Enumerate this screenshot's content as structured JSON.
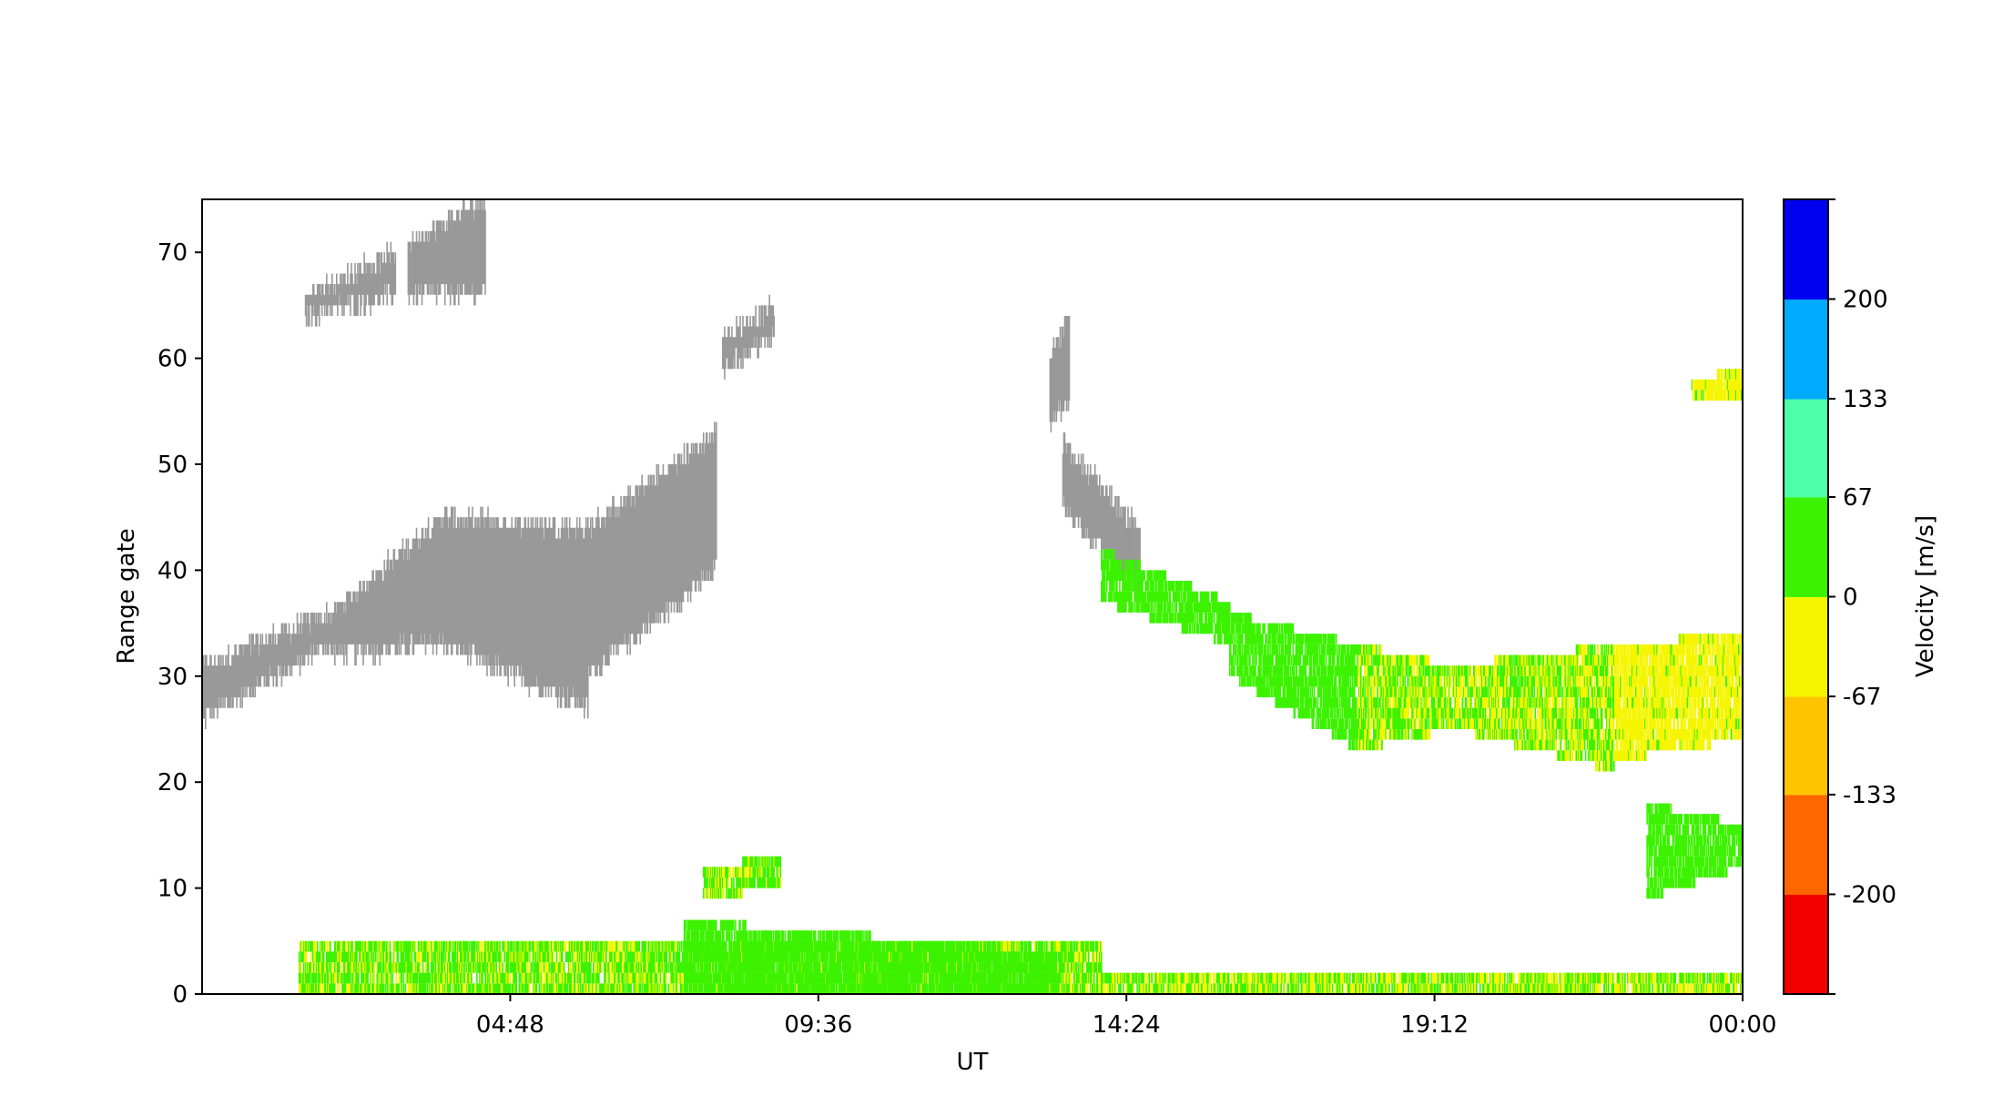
{
  "chart_data": {
    "type": "heatmap",
    "title": "",
    "xlabel": "UT",
    "ylabel": "Range gate",
    "x_range_hours": [
      0,
      24
    ],
    "x_ticks": [
      {
        "value": 4.8,
        "label": "04:48"
      },
      {
        "value": 9.6,
        "label": "09:36"
      },
      {
        "value": 14.4,
        "label": "14:24"
      },
      {
        "value": 19.2,
        "label": "19:12"
      },
      {
        "value": 24.0,
        "label": "00:00"
      }
    ],
    "ylim": [
      0,
      75
    ],
    "y_ticks": [
      {
        "value": 0,
        "label": "0"
      },
      {
        "value": 10,
        "label": "10"
      },
      {
        "value": 20,
        "label": "20"
      },
      {
        "value": 30,
        "label": "30"
      },
      {
        "value": 40,
        "label": "40"
      },
      {
        "value": 50,
        "label": "50"
      },
      {
        "value": 60,
        "label": "60"
      },
      {
        "value": 70,
        "label": "70"
      }
    ],
    "grid": false,
    "colorbar": {
      "label": "Velocity [m/s]",
      "range": [
        -267,
        267
      ],
      "boundaries": [
        -267,
        -200,
        -133,
        -67,
        0,
        67,
        133,
        200,
        267
      ],
      "colors": [
        "#f20000",
        "#ff6600",
        "#ffc400",
        "#f5f500",
        "#3df200",
        "#4dffa6",
        "#00aaff",
        "#0000f0"
      ],
      "ticks": [
        {
          "value": 200,
          "label": "200"
        },
        {
          "value": 133,
          "label": "133"
        },
        {
          "value": 67,
          "label": "67"
        },
        {
          "value": 0,
          "label": "0"
        },
        {
          "value": -67,
          "label": "-67"
        },
        {
          "value": -133,
          "label": "-133"
        },
        {
          "value": -200,
          "label": "-200"
        }
      ]
    },
    "ground_scatter_color": "#999999",
    "ground_scatter_regions": [
      {
        "x": [
          0.0,
          2.0
        ],
        "y_low": [
          26,
          33
        ],
        "y_high": [
          31,
          36
        ]
      },
      {
        "x": [
          2.0,
          3.7
        ],
        "y_low": [
          32,
          33
        ],
        "y_high": [
          36,
          45
        ]
      },
      {
        "x": [
          3.7,
          6.0
        ],
        "y_low": [
          33,
          27
        ],
        "y_high": [
          45,
          44
        ]
      },
      {
        "x": [
          6.0,
          8.0
        ],
        "y_low": [
          30,
          40
        ],
        "y_high": [
          44,
          53
        ]
      },
      {
        "x": [
          1.6,
          3.0
        ],
        "y_low": [
          64,
          66
        ],
        "y_high": [
          66,
          70
        ]
      },
      {
        "x": [
          3.2,
          4.4
        ],
        "y_low": [
          66,
          66
        ],
        "y_high": [
          71,
          75
        ]
      },
      {
        "x": [
          8.1,
          8.9
        ],
        "y_low": [
          59,
          62
        ],
        "y_high": [
          62,
          65
        ]
      },
      {
        "x": [
          13.4,
          14.6
        ],
        "y_low": [
          46,
          38
        ],
        "y_high": [
          52,
          44
        ]
      },
      {
        "x": [
          13.2,
          13.5
        ],
        "y_low": [
          54,
          56
        ],
        "y_high": [
          60,
          64
        ]
      }
    ],
    "scatter_bands": [
      {
        "x": [
          14.0,
          16.0
        ],
        "y_low": [
          37,
          33
        ],
        "y_high": [
          42,
          37
        ],
        "v": [
          5,
          45
        ]
      },
      {
        "x": [
          16.0,
          18.0
        ],
        "y_low": [
          30,
          23
        ],
        "y_high": [
          36,
          33
        ],
        "v": [
          15,
          55
        ]
      },
      {
        "x": [
          18.0,
          19.5
        ],
        "y_low": [
          23,
          25
        ],
        "y_high": [
          33,
          31
        ],
        "v": [
          -30,
          50
        ]
      },
      {
        "x": [
          19.5,
          22.0
        ],
        "y_low": [
          25,
          21
        ],
        "y_high": [
          31,
          33
        ],
        "v": [
          -40,
          40
        ]
      },
      {
        "x": [
          22.0,
          24.0
        ],
        "y_low": [
          22,
          24
        ],
        "y_high": [
          33,
          34
        ],
        "v": [
          -55,
          5
        ]
      },
      {
        "x": [
          22.5,
          24.0
        ],
        "y_low": [
          9,
          12
        ],
        "y_high": [
          18,
          16
        ],
        "v": [
          20,
          60
        ]
      },
      {
        "x": [
          1.5,
          14.0
        ],
        "y_low": [
          0,
          0
        ],
        "y_high": [
          5,
          5
        ],
        "v": [
          -20,
          50
        ]
      },
      {
        "x": [
          7.5,
          13.3
        ],
        "y_low": [
          0,
          0
        ],
        "y_high": [
          7,
          4
        ],
        "v": [
          0,
          50
        ]
      },
      {
        "x": [
          14.0,
          24.0
        ],
        "y_low": [
          0,
          0
        ],
        "y_high": [
          2,
          2
        ],
        "v": [
          -30,
          40
        ]
      },
      {
        "x": [
          7.8,
          9.0
        ],
        "y_low": [
          9,
          10
        ],
        "y_high": [
          12,
          13
        ],
        "v": [
          -20,
          40
        ]
      },
      {
        "x": [
          23.2,
          24.0
        ],
        "y_low": [
          56,
          56
        ],
        "y_high": [
          58,
          59
        ],
        "v": [
          -30,
          5
        ]
      }
    ]
  }
}
